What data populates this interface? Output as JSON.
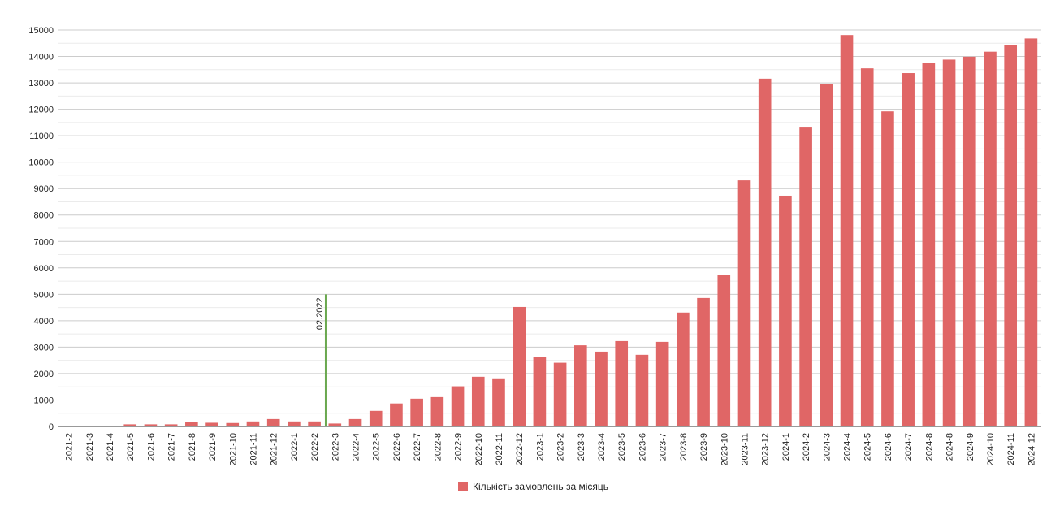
{
  "chart_data": {
    "type": "bar",
    "categories": [
      "2021-2",
      "2021-3",
      "2021-4",
      "2021-5",
      "2021-6",
      "2021-7",
      "2021-8",
      "2021-9",
      "2021-10",
      "2021-11",
      "2021-12",
      "2022-1",
      "2022-2",
      "2022-3",
      "2022-4",
      "2022-5",
      "2022-6",
      "2022-7",
      "2022-8",
      "2022-9",
      "2022-10",
      "2022-11",
      "2022-12",
      "2023-1",
      "2023-2",
      "2023-3",
      "2023-4",
      "2023-5",
      "2023-6",
      "2023-7",
      "2023-8",
      "2023-9",
      "2023-10",
      "2023-11",
      "2023-12",
      "2024-1",
      "2024-2",
      "2024-3",
      "2024-4",
      "2024-5",
      "2024-6",
      "2024-7",
      "2024-8",
      "2024-8",
      "2024-9",
      "2024-10",
      "2024-11",
      "2024-12"
    ],
    "series": [
      {
        "name": "Кількість замовлень за місяць",
        "color": "#e06666",
        "values": [
          10,
          10,
          30,
          80,
          80,
          80,
          160,
          140,
          130,
          190,
          280,
          190,
          190,
          110,
          280,
          590,
          870,
          1050,
          1110,
          1520,
          1880,
          1820,
          4520,
          2620,
          2410,
          3070,
          2830,
          3230,
          2710,
          3200,
          4310,
          4860,
          5720,
          9310,
          13160,
          8730,
          11340,
          12970,
          14810,
          13550,
          11920,
          13370,
          13760,
          13880,
          13990,
          14180,
          14430,
          14680
        ]
      }
    ],
    "yticks": [
      "0",
      "1000",
      "2000",
      "3000",
      "4000",
      "5000",
      "6000",
      "7000",
      "8000",
      "9000",
      "10000",
      "11000",
      "12000",
      "13000",
      "14000",
      "15000"
    ],
    "ylim": [
      0,
      15000
    ],
    "grid": true,
    "legend_position": "bottom",
    "annotations": [
      {
        "label": "02.2022",
        "category_index": 12,
        "y_top": 5000,
        "color": "#6aa84f"
      }
    ]
  }
}
